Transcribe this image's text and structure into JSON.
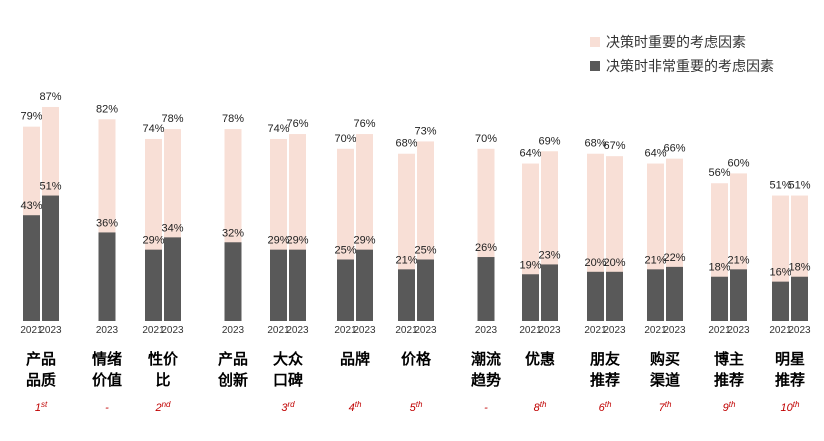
{
  "chart_data": {
    "type": "bar",
    "colors": {
      "important": "#f8dfd6",
      "very_important": "#595959",
      "rank_text": "#c00000",
      "label_text": "#000000"
    },
    "legend": [
      {
        "label": "决策时重要的考虑因素",
        "color": "#f8dfd6"
      },
      {
        "label": "决策时非常重要的考虑因素",
        "color": "#595959"
      }
    ],
    "ylim": [
      0,
      100
    ],
    "groups": [
      {
        "category": [
          "产品",
          "品质"
        ],
        "rank": "1st",
        "bars": [
          {
            "year": "2021",
            "important": 79,
            "very_important": 43
          },
          {
            "year": "2023",
            "important": 87,
            "very_important": 51
          }
        ]
      },
      {
        "category": [
          "情绪",
          "价值"
        ],
        "rank": "-",
        "bars": [
          {
            "year": "2023",
            "important": 82,
            "very_important": 36
          }
        ]
      },
      {
        "category": [
          "性价",
          "比"
        ],
        "rank": "2nd",
        "bars": [
          {
            "year": "2021",
            "important": 74,
            "very_important": 29
          },
          {
            "year": "2023",
            "important": 78,
            "very_important": 34
          }
        ]
      },
      {
        "category": [
          "产品",
          "创新"
        ],
        "rank": "",
        "bars": [
          {
            "year": "2023",
            "important": 78,
            "very_important": 32
          }
        ]
      },
      {
        "category": [
          "大众",
          "口碑"
        ],
        "rank": "3rd",
        "bars": [
          {
            "year": "2021",
            "important": 74,
            "very_important": 29
          },
          {
            "year": "2023",
            "important": 76,
            "very_important": 29
          }
        ]
      },
      {
        "category": [
          "品牌"
        ],
        "rank": "4th",
        "bars": [
          {
            "year": "2021",
            "important": 70,
            "very_important": 25
          },
          {
            "year": "2023",
            "important": 76,
            "very_important": 29
          }
        ]
      },
      {
        "category": [
          "价格"
        ],
        "rank": "5th",
        "bars": [
          {
            "year": "2021",
            "important": 68,
            "very_important": 21
          },
          {
            "year": "2023",
            "important": 73,
            "very_important": 25
          }
        ]
      },
      {
        "category": [
          "潮流",
          "趋势"
        ],
        "rank": "-",
        "bars": [
          {
            "year": "2023",
            "important": 70,
            "very_important": 26
          }
        ]
      },
      {
        "category": [
          "优惠"
        ],
        "rank": "8th",
        "bars": [
          {
            "year": "2021",
            "important": 64,
            "very_important": 19
          },
          {
            "year": "2023",
            "important": 69,
            "very_important": 23
          }
        ]
      },
      {
        "category": [
          "朋友",
          "推荐"
        ],
        "rank": "6th",
        "bars": [
          {
            "year": "2021",
            "important": 68,
            "very_important": 20
          },
          {
            "year": "2023",
            "important": 67,
            "very_important": 20
          }
        ]
      },
      {
        "category": [
          "购买",
          "渠道"
        ],
        "rank": "7th",
        "bars": [
          {
            "year": "2021",
            "important": 64,
            "very_important": 21
          },
          {
            "year": "2023",
            "important": 66,
            "very_important": 22
          }
        ]
      },
      {
        "category": [
          "博主",
          "推荐"
        ],
        "rank": "9th",
        "bars": [
          {
            "year": "2021",
            "important": 56,
            "very_important": 18
          },
          {
            "year": "2023",
            "important": 60,
            "very_important": 21
          }
        ]
      },
      {
        "category": [
          "明星",
          "推荐"
        ],
        "rank": "10th",
        "bars": [
          {
            "year": "2021",
            "important": 51,
            "very_important": 16
          },
          {
            "year": "2023",
            "important": 51,
            "very_important": 18
          }
        ]
      }
    ]
  }
}
